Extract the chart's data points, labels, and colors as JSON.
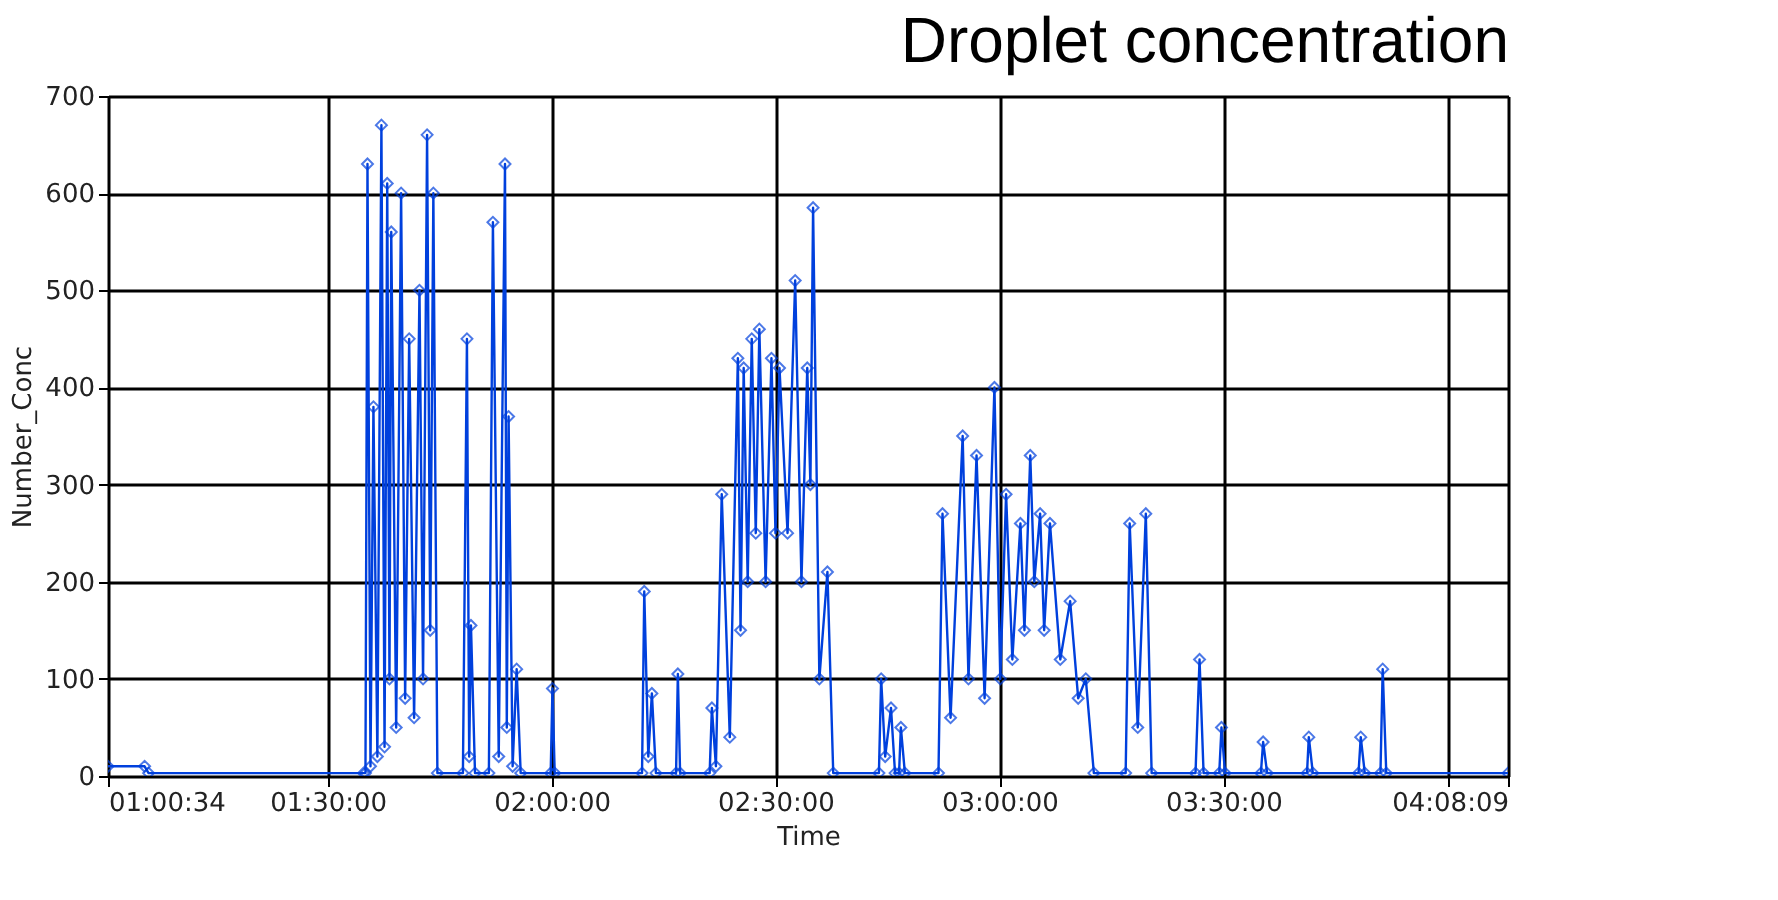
{
  "chart_data": {
    "type": "line",
    "title": "Droplet concentration",
    "xlabel": "Time",
    "ylabel": "Number_Conc",
    "x": [
      1.00944,
      1.0912,
      1.1,
      1.58,
      1.5844,
      1.5889,
      1.5956,
      1.6022,
      1.611,
      1.62,
      1.627,
      1.633,
      1.638,
      1.642,
      1.653,
      1.664,
      1.673,
      1.682,
      1.693,
      1.705,
      1.713,
      1.722,
      1.729,
      1.736,
      1.745,
      1.802,
      1.811,
      1.816,
      1.82,
      1.829,
      1.86,
      1.869,
      1.882,
      1.896,
      1.9,
      1.904,
      1.913,
      1.922,
      1.931,
      1.998,
      2.002,
      2.007,
      2.202,
      2.207,
      2.216,
      2.224,
      2.233,
      2.278,
      2.282,
      2.287,
      2.353,
      2.358,
      2.367,
      2.38,
      2.398,
      2.416,
      2.422,
      2.429,
      2.438,
      2.447,
      2.456,
      2.464,
      2.478,
      2.491,
      2.5,
      2.509,
      2.527,
      2.544,
      2.558,
      2.571,
      2.578,
      2.584,
      2.598,
      2.616,
      2.629,
      2.731,
      2.736,
      2.745,
      2.758,
      2.767,
      2.776,
      2.78,
      2.789,
      2.864,
      2.873,
      2.891,
      2.918,
      2.931,
      2.949,
      2.967,
      2.989,
      3.002,
      3.015,
      3.029,
      3.047,
      3.056,
      3.069,
      3.078,
      3.091,
      3.1,
      3.113,
      3.136,
      3.158,
      3.176,
      3.193,
      3.211,
      3.282,
      3.291,
      3.309,
      3.327,
      3.34,
      3.438,
      3.447,
      3.456,
      3.491,
      3.496,
      3.504,
      3.584,
      3.589,
      3.598,
      3.687,
      3.691,
      3.7,
      3.802,
      3.807,
      3.816,
      3.851,
      3.856,
      3.864,
      4.13583
    ],
    "series": [
      {
        "color": "#0040dd",
        "values": [
          10,
          10,
          3,
          3,
          3,
          630,
          10,
          380,
          20,
          670,
          30,
          610,
          100,
          560,
          50,
          600,
          80,
          450,
          60,
          500,
          100,
          660,
          150,
          600,
          3,
          3,
          450,
          20,
          155,
          3,
          3,
          570,
          20,
          630,
          50,
          370,
          10,
          110,
          3,
          3,
          90,
          3,
          3,
          190,
          20,
          85,
          3,
          3,
          105,
          3,
          3,
          70,
          10,
          290,
          40,
          430,
          150,
          420,
          200,
          450,
          250,
          460,
          200,
          430,
          250,
          420,
          250,
          510,
          200,
          420,
          300,
          585,
          100,
          210,
          3,
          3,
          100,
          20,
          70,
          3,
          3,
          50,
          3,
          3,
          270,
          60,
          350,
          100,
          330,
          80,
          400,
          100,
          290,
          120,
          260,
          150,
          330,
          200,
          270,
          150,
          260,
          120,
          180,
          80,
          100,
          3,
          3,
          260,
          50,
          270,
          3,
          3,
          120,
          3,
          3,
          50,
          3,
          3,
          35,
          3,
          3,
          40,
          3,
          3,
          40,
          3,
          3,
          110,
          3,
          3
        ]
      }
    ],
    "xlim": [
      1.00944,
      4.13583
    ],
    "xticks": [
      {
        "value": 1.00944,
        "label": "01:00:34"
      },
      {
        "value": 1.5,
        "label": "01:30:00"
      },
      {
        "value": 2,
        "label": "02:00:00"
      },
      {
        "value": 2.5,
        "label": "02:30:00"
      },
      {
        "value": 3,
        "label": "03:00:00"
      },
      {
        "value": 3.5,
        "label": "03:30:00"
      },
      {
        "value": 4,
        "label": null
      },
      {
        "value": 4.13583,
        "label": "04:08:09"
      }
    ],
    "ylim": [
      0,
      700
    ],
    "yticks": [
      0,
      100,
      200,
      300,
      400,
      500,
      600,
      700
    ],
    "grid": true,
    "marker": "diamond",
    "line_style": "solid"
  }
}
